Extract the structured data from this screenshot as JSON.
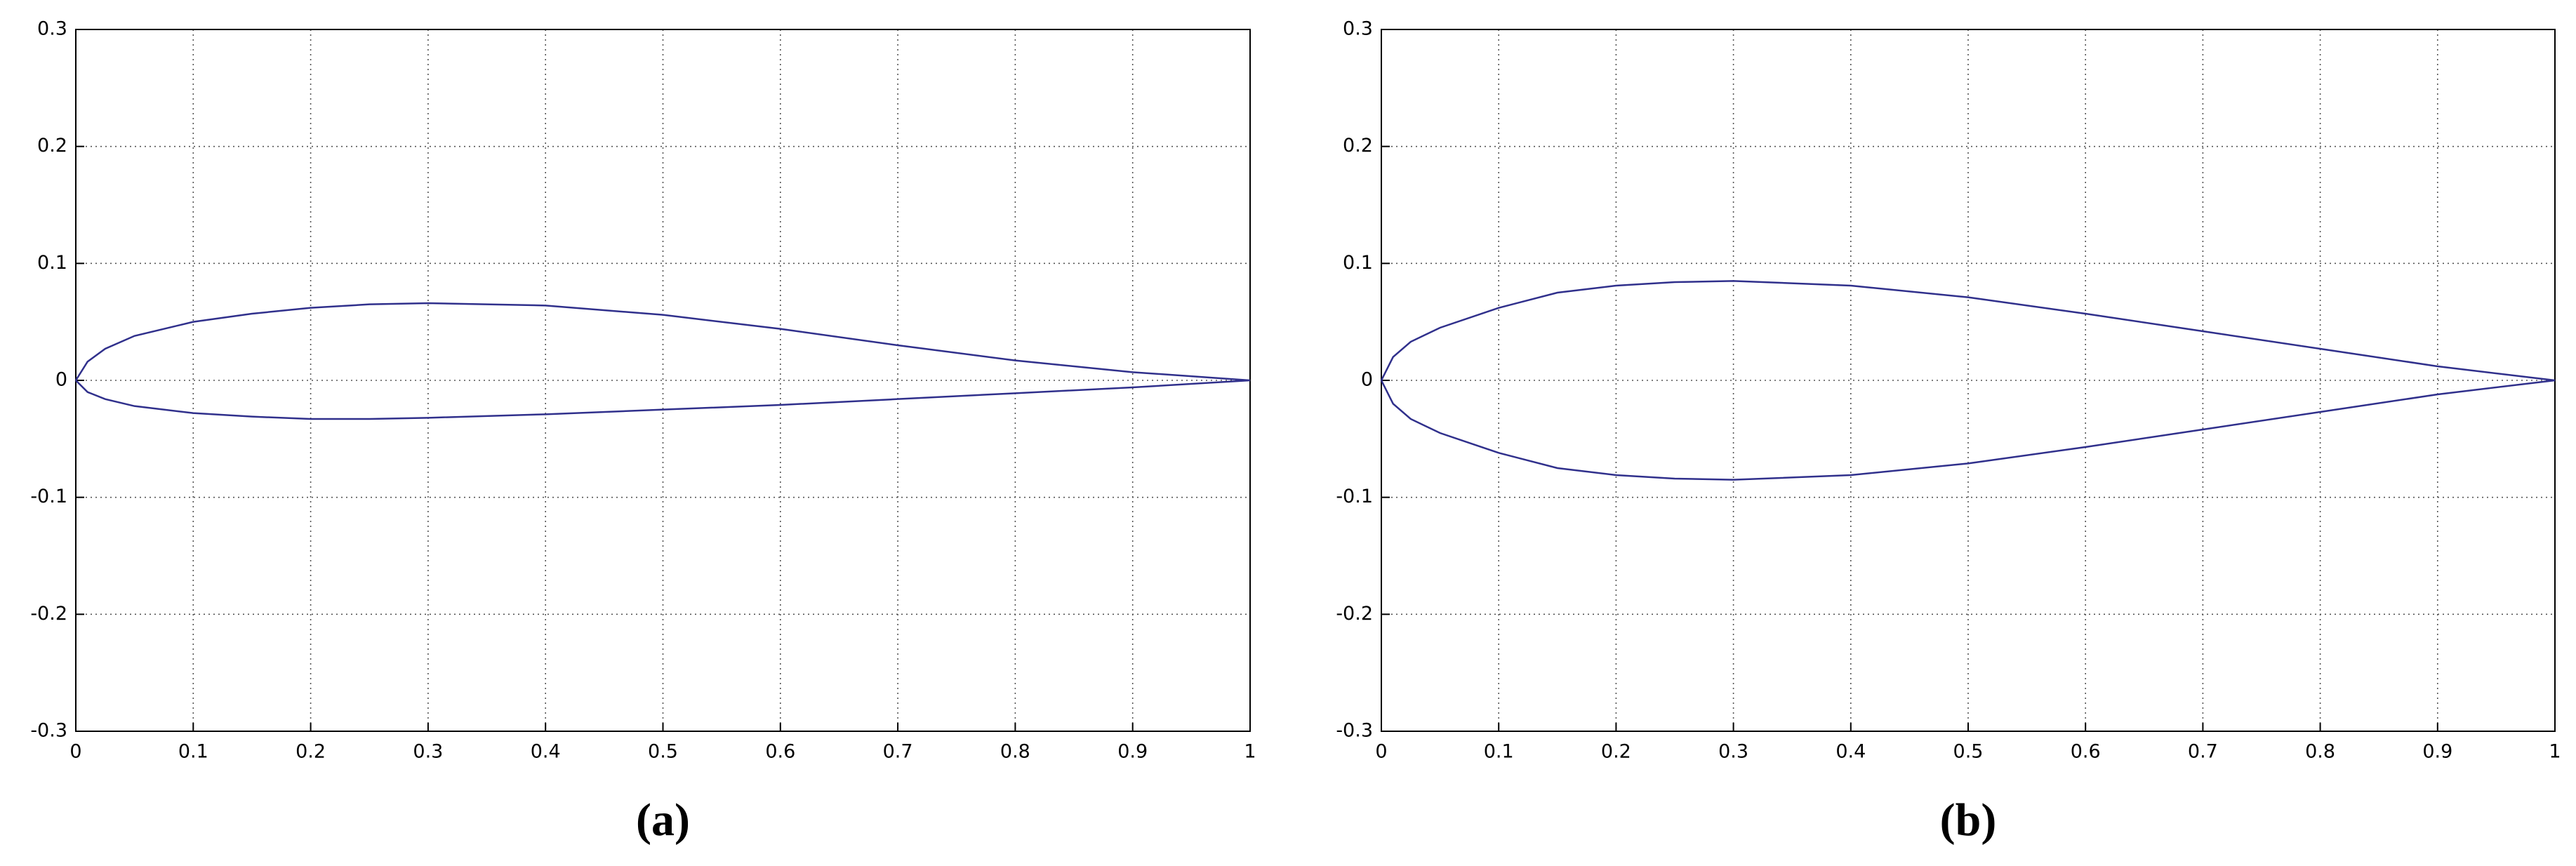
{
  "chart_data": [
    {
      "type": "line",
      "caption": "(a)",
      "xlim": [
        0,
        1
      ],
      "xticks": [
        0,
        0.1,
        0.2,
        0.3,
        0.4,
        0.5,
        0.6,
        0.7,
        0.8,
        0.9,
        1
      ],
      "ylim": [
        -0.3,
        0.3
      ],
      "yticks": [
        -0.3,
        -0.2,
        -0.1,
        0,
        0.1,
        0.2,
        0.3
      ],
      "grid": true,
      "series": [
        {
          "color": "#30308c",
          "x": [
            0,
            0.01,
            0.025,
            0.05,
            0.1,
            0.15,
            0.2,
            0.25,
            0.3,
            0.4,
            0.5,
            0.6,
            0.7,
            0.8,
            0.9,
            1
          ],
          "values": [
            0,
            0.016,
            0.027,
            0.038,
            0.05,
            0.057,
            0.062,
            0.065,
            0.066,
            0.064,
            0.056,
            0.044,
            0.03,
            0.017,
            0.007,
            0
          ]
        },
        {
          "color": "#30308c",
          "x": [
            0,
            0.01,
            0.025,
            0.05,
            0.1,
            0.15,
            0.2,
            0.25,
            0.3,
            0.4,
            0.5,
            0.6,
            0.7,
            0.8,
            0.9,
            1
          ],
          "values": [
            0,
            -0.01,
            -0.016,
            -0.022,
            -0.028,
            -0.031,
            -0.033,
            -0.033,
            -0.032,
            -0.029,
            -0.025,
            -0.021,
            -0.016,
            -0.011,
            -0.006,
            0
          ]
        }
      ]
    },
    {
      "type": "line",
      "caption": "(b)",
      "xlim": [
        0,
        1
      ],
      "xticks": [
        0,
        0.1,
        0.2,
        0.3,
        0.4,
        0.5,
        0.6,
        0.7,
        0.8,
        0.9,
        1
      ],
      "ylim": [
        -0.3,
        0.3
      ],
      "yticks": [
        -0.3,
        -0.2,
        -0.1,
        0,
        0.1,
        0.2,
        0.3
      ],
      "grid": true,
      "series": [
        {
          "color": "#30308c",
          "x": [
            0,
            0.01,
            0.025,
            0.05,
            0.1,
            0.15,
            0.2,
            0.25,
            0.3,
            0.4,
            0.5,
            0.6,
            0.7,
            0.8,
            0.9,
            1
          ],
          "values": [
            0,
            0.02,
            0.033,
            0.045,
            0.062,
            0.075,
            0.081,
            0.084,
            0.085,
            0.081,
            0.071,
            0.057,
            0.042,
            0.027,
            0.012,
            0
          ]
        },
        {
          "color": "#30308c",
          "x": [
            0,
            0.01,
            0.025,
            0.05,
            0.1,
            0.15,
            0.2,
            0.25,
            0.3,
            0.4,
            0.5,
            0.6,
            0.7,
            0.8,
            0.9,
            1
          ],
          "values": [
            0,
            -0.02,
            -0.033,
            -0.045,
            -0.062,
            -0.075,
            -0.081,
            -0.084,
            -0.085,
            -0.081,
            -0.071,
            -0.057,
            -0.042,
            -0.027,
            -0.012,
            0
          ]
        }
      ]
    }
  ]
}
